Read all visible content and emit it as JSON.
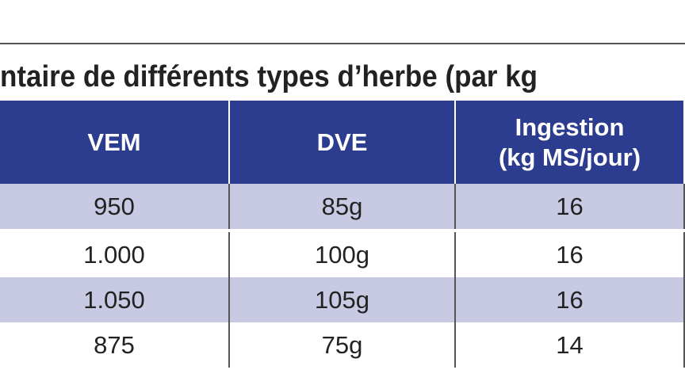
{
  "title": "ntaire de différents types d’herbe (par kg",
  "table": {
    "headers": [
      [
        "VEM"
      ],
      [
        "DVE"
      ],
      [
        "Ingestion",
        "(kg MS/jour)"
      ]
    ],
    "rows": [
      [
        "950",
        "85g",
        "16"
      ],
      [
        "1.000",
        "100g",
        "16"
      ],
      [
        "1.050",
        "105g",
        "16"
      ],
      [
        "875",
        "75g",
        "14"
      ]
    ]
  }
}
